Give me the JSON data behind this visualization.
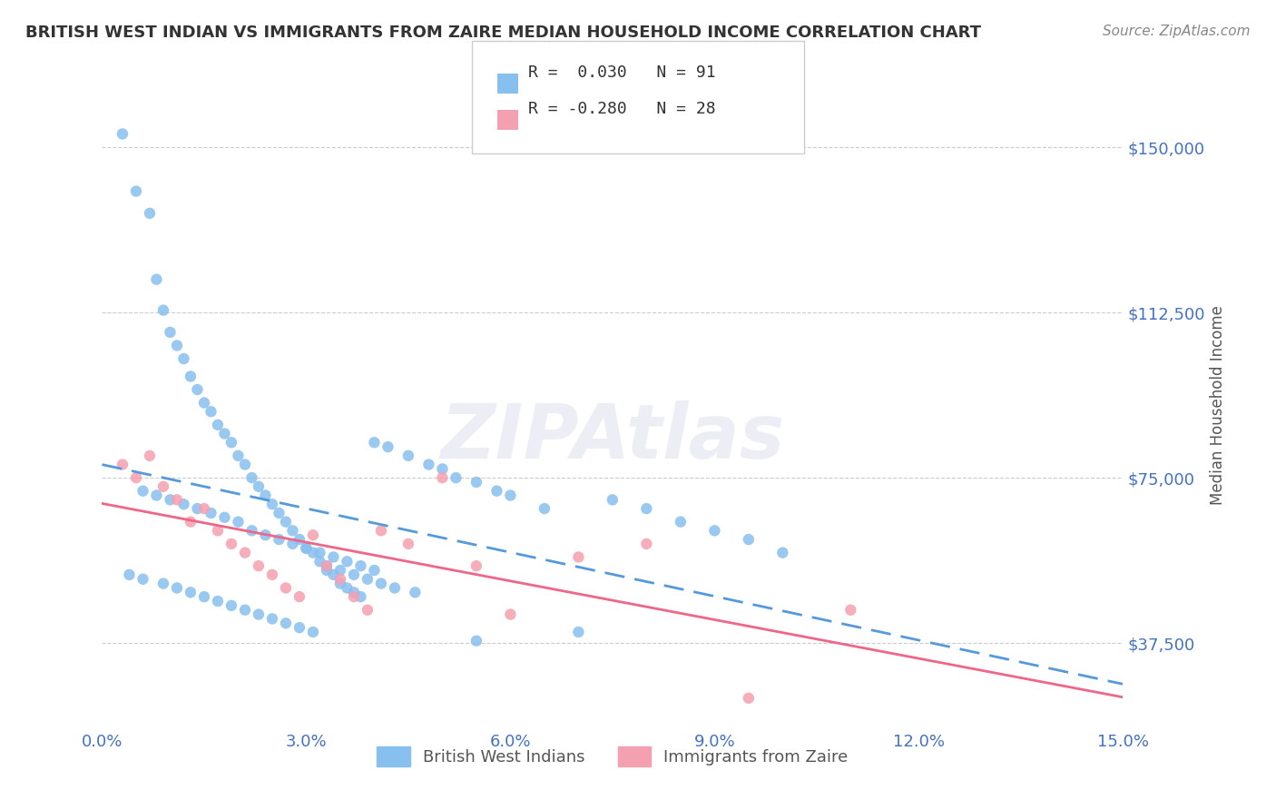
{
  "title": "BRITISH WEST INDIAN VS IMMIGRANTS FROM ZAIRE MEDIAN HOUSEHOLD INCOME CORRELATION CHART",
  "source": "Source: ZipAtlas.com",
  "xlabel": "",
  "ylabel": "Median Household Income",
  "xlim": [
    0.0,
    15.0
  ],
  "ylim": [
    18000,
    165000
  ],
  "yticks": [
    37500,
    75000,
    112500,
    150000
  ],
  "ytick_labels": [
    "$37,500",
    "$75,000",
    "$112,500",
    "$150,000"
  ],
  "xticks": [
    0.0,
    3.0,
    6.0,
    9.0,
    12.0,
    15.0
  ],
  "xtick_labels": [
    "0.0%",
    "3.0%",
    "6.0%",
    "9.0%",
    "12.0%",
    "15.0%"
  ],
  "series1_color": "#87BFEE",
  "series2_color": "#F5A0B0",
  "line1_color": "#5599DD",
  "line2_color": "#EE6688",
  "R1": 0.03,
  "N1": 91,
  "R2": -0.28,
  "N2": 28,
  "legend_label1": "British West Indians",
  "legend_label2": "Immigrants from Zaire",
  "watermark": "ZIPAtlas",
  "background_color": "#ffffff",
  "grid_color": "#cccccc",
  "axis_color": "#4472C4",
  "title_color": "#333333",
  "blue_scatter_x": [
    0.3,
    0.5,
    0.7,
    0.8,
    0.9,
    1.0,
    1.1,
    1.2,
    1.3,
    1.4,
    1.5,
    1.6,
    1.7,
    1.8,
    1.9,
    2.0,
    2.1,
    2.2,
    2.3,
    2.4,
    2.5,
    2.6,
    2.7,
    2.8,
    2.9,
    3.0,
    3.1,
    3.2,
    3.3,
    3.4,
    3.5,
    3.6,
    3.7,
    3.8,
    4.0,
    4.2,
    4.5,
    4.8,
    5.0,
    5.2,
    5.5,
    5.8,
    6.0,
    6.5,
    7.0,
    7.5,
    8.0,
    8.5,
    9.0,
    9.5,
    10.0,
    0.6,
    0.8,
    1.0,
    1.2,
    1.4,
    1.6,
    1.8,
    2.0,
    2.2,
    2.4,
    2.6,
    2.8,
    3.0,
    3.2,
    3.4,
    3.6,
    3.8,
    4.0,
    0.4,
    0.6,
    0.9,
    1.1,
    1.3,
    1.5,
    1.7,
    1.9,
    2.1,
    2.3,
    2.5,
    2.7,
    2.9,
    3.1,
    3.3,
    3.5,
    3.7,
    3.9,
    4.1,
    4.3,
    4.6,
    5.5
  ],
  "blue_scatter_y": [
    153000,
    140000,
    135000,
    120000,
    113000,
    108000,
    105000,
    102000,
    98000,
    95000,
    92000,
    90000,
    87000,
    85000,
    83000,
    80000,
    78000,
    75000,
    73000,
    71000,
    69000,
    67000,
    65000,
    63000,
    61000,
    59000,
    58000,
    56000,
    54000,
    53000,
    51000,
    50000,
    49000,
    48000,
    83000,
    82000,
    80000,
    78000,
    77000,
    75000,
    74000,
    72000,
    71000,
    68000,
    40000,
    70000,
    68000,
    65000,
    63000,
    61000,
    58000,
    72000,
    71000,
    70000,
    69000,
    68000,
    67000,
    66000,
    65000,
    63000,
    62000,
    61000,
    60000,
    59000,
    58000,
    57000,
    56000,
    55000,
    54000,
    53000,
    52000,
    51000,
    50000,
    49000,
    48000,
    47000,
    46000,
    45000,
    44000,
    43000,
    42000,
    41000,
    40000,
    55000,
    54000,
    53000,
    52000,
    51000,
    50000,
    49000,
    38000
  ],
  "pink_scatter_x": [
    0.3,
    0.5,
    0.7,
    0.9,
    1.1,
    1.3,
    1.5,
    1.7,
    1.9,
    2.1,
    2.3,
    2.5,
    2.7,
    2.9,
    3.1,
    3.3,
    3.5,
    3.7,
    3.9,
    4.1,
    4.5,
    5.0,
    5.5,
    6.0,
    7.0,
    8.0,
    9.5,
    11.0
  ],
  "pink_scatter_y": [
    78000,
    75000,
    80000,
    73000,
    70000,
    65000,
    68000,
    63000,
    60000,
    58000,
    55000,
    53000,
    50000,
    48000,
    62000,
    55000,
    52000,
    48000,
    45000,
    63000,
    60000,
    75000,
    55000,
    44000,
    57000,
    60000,
    25000,
    45000
  ]
}
